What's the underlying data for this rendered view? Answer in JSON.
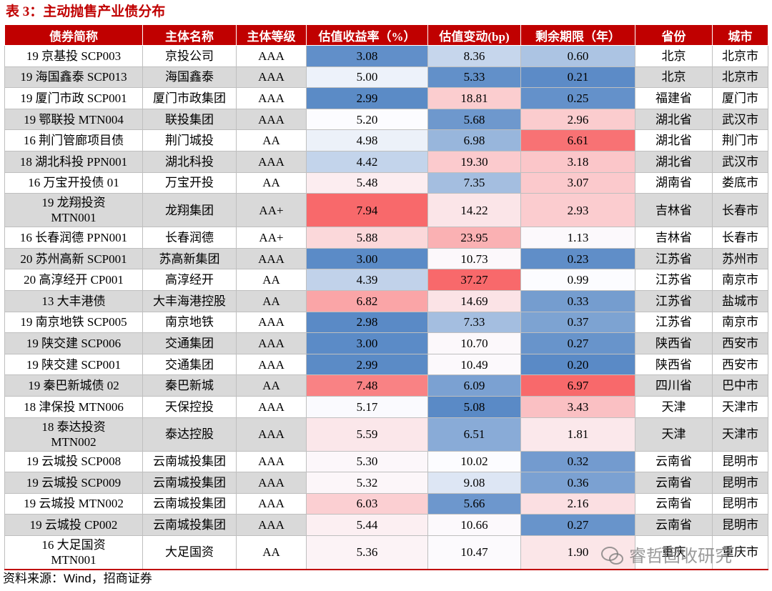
{
  "title": "表 3：主动抛售产业债分布",
  "title_color": "#c00000",
  "header_color": "#c00000",
  "stripe_color": "#d9d9d9",
  "scale_colors": [
    "#5a8ac6",
    "#fcfcff",
    "#f8696b"
  ],
  "table": {
    "columns": [
      "债券简称",
      "主体名称",
      "主体等级",
      "估值收益率（%）",
      "估值变动(bp)",
      "剩余期限（年）",
      "省份",
      "城市"
    ],
    "rows": [
      [
        "19 京基投 SCP003",
        "京投公司",
        "AAA",
        "3.08",
        "8.36",
        "0.60",
        "北京",
        "北京市"
      ],
      [
        "19 海国鑫泰 SCP013",
        "海国鑫泰",
        "AAA",
        "5.00",
        "5.33",
        "0.21",
        "北京",
        "北京市"
      ],
      [
        "19 厦门市政 SCP001",
        "厦门市政集团",
        "AAA",
        "2.99",
        "18.81",
        "0.25",
        "福建省",
        "厦门市"
      ],
      [
        "19 鄂联投 MTN004",
        "联投集团",
        "AAA",
        "5.20",
        "5.68",
        "2.96",
        "湖北省",
        "武汉市"
      ],
      [
        "16 荆门管廊项目债",
        "荆门城投",
        "AA",
        "4.98",
        "6.98",
        "6.61",
        "湖北省",
        "荆门市"
      ],
      [
        "18 湖北科投 PPN001",
        "湖北科投",
        "AAA",
        "4.42",
        "19.30",
        "3.18",
        "湖北省",
        "武汉市"
      ],
      [
        "16 万宝开投债 01",
        "万宝开投",
        "AA",
        "5.48",
        "7.35",
        "3.07",
        "湖南省",
        "娄底市"
      ],
      [
        "19 龙翔投资\nMTN001",
        "龙翔集团",
        "AA+",
        "7.94",
        "14.22",
        "2.93",
        "吉林省",
        "长春市"
      ],
      [
        "16 长春润德 PPN001",
        "长春润德",
        "AA+",
        "5.88",
        "23.95",
        "1.13",
        "吉林省",
        "长春市"
      ],
      [
        "20 苏州高新 SCP001",
        "苏高新集团",
        "AAA",
        "3.00",
        "10.73",
        "0.23",
        "江苏省",
        "苏州市"
      ],
      [
        "20 高淳经开 CP001",
        "高淳经开",
        "AA",
        "4.39",
        "37.27",
        "0.99",
        "江苏省",
        "南京市"
      ],
      [
        "13 大丰港债",
        "大丰海港控股",
        "AA",
        "6.82",
        "14.69",
        "0.33",
        "江苏省",
        "盐城市"
      ],
      [
        "19 南京地铁 SCP005",
        "南京地铁",
        "AAA",
        "2.98",
        "7.33",
        "0.37",
        "江苏省",
        "南京市"
      ],
      [
        "19 陕交建 SCP006",
        "交通集团",
        "AAA",
        "3.00",
        "10.70",
        "0.27",
        "陕西省",
        "西安市"
      ],
      [
        "19 陕交建 SCP001",
        "交通集团",
        "AAA",
        "2.99",
        "10.49",
        "0.20",
        "陕西省",
        "西安市"
      ],
      [
        "19 秦巴新城债 02",
        "秦巴新城",
        "AA",
        "7.48",
        "6.09",
        "6.97",
        "四川省",
        "巴中市"
      ],
      [
        "18 津保投 MTN006",
        "天保控投",
        "AAA",
        "5.17",
        "5.08",
        "3.43",
        "天津",
        "天津市"
      ],
      [
        "18 泰达投资\nMTN002",
        "泰达控股",
        "AAA",
        "5.59",
        "6.51",
        "1.81",
        "天津",
        "天津市"
      ],
      [
        "19 云城投 SCP008",
        "云南城投集团",
        "AAA",
        "5.30",
        "10.02",
        "0.32",
        "云南省",
        "昆明市"
      ],
      [
        "19 云城投 SCP009",
        "云南城投集团",
        "AAA",
        "5.32",
        "9.08",
        "0.36",
        "云南省",
        "昆明市"
      ],
      [
        "19 云城投 MTN002",
        "云南城投集团",
        "AAA",
        "6.03",
        "5.66",
        "2.16",
        "云南省",
        "昆明市"
      ],
      [
        "19 云城投 CP002",
        "云南城投集团",
        "AAA",
        "5.44",
        "10.66",
        "0.27",
        "云南省",
        "昆明市"
      ],
      [
        "16 大足国资\nMTN001",
        "大足国资",
        "AA",
        "5.36",
        "10.47",
        "1.90",
        "重庆",
        "重庆市"
      ]
    ]
  },
  "source": "资料来源：Wind，招商证券",
  "watermark": "睿哲固收研究"
}
